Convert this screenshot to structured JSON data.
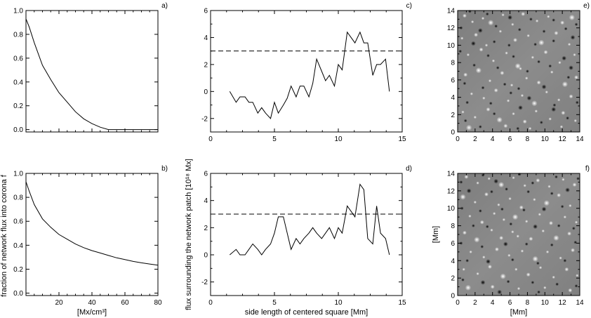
{
  "chart_data": [
    {
      "id": "a",
      "panel_label": "a)",
      "type": "line",
      "xlim": [
        0,
        80
      ],
      "ylim": [
        -0.02,
        1.0
      ],
      "xticks": [],
      "yticks": [
        "0.0",
        "0.2",
        "0.4",
        "0.6",
        "0.8",
        "1.0"
      ],
      "xlabel": "",
      "ylabel": "",
      "series": [
        {
          "x": [
            0,
            2,
            5,
            10,
            15,
            20,
            25,
            30,
            35,
            40,
            45,
            50,
            60,
            70,
            80
          ],
          "y": [
            0.93,
            0.86,
            0.73,
            0.54,
            0.42,
            0.31,
            0.23,
            0.15,
            0.09,
            0.05,
            0.02,
            0.0,
            0.0,
            0.0,
            0.0
          ]
        }
      ]
    },
    {
      "id": "b",
      "panel_label": "b)",
      "type": "line",
      "xlim": [
        0,
        80
      ],
      "ylim": [
        -0.02,
        1.0
      ],
      "xticks": [
        "20",
        "40",
        "60",
        "80"
      ],
      "yticks": [
        "0.0",
        "0.2",
        "0.4",
        "0.6",
        "0.8",
        "1.0"
      ],
      "xlabel": "[Mx/cm³]",
      "ylabel": "fraction of network flux into corona  f",
      "series": [
        {
          "x": [
            0,
            2,
            5,
            10,
            15,
            20,
            25,
            30,
            35,
            40,
            45,
            50,
            55,
            60,
            65,
            70,
            75,
            80
          ],
          "y": [
            0.93,
            0.85,
            0.74,
            0.62,
            0.55,
            0.49,
            0.45,
            0.41,
            0.38,
            0.355,
            0.335,
            0.315,
            0.295,
            0.28,
            0.265,
            0.253,
            0.243,
            0.233
          ]
        }
      ]
    },
    {
      "id": "c",
      "panel_label": "c)",
      "type": "line",
      "xlim": [
        0,
        15
      ],
      "ylim": [
        -3,
        6
      ],
      "xticks": [
        "0",
        "5",
        "10",
        "15"
      ],
      "yticks": [
        "-2",
        "0",
        "2",
        "4",
        "6"
      ],
      "xlabel": "",
      "ylabel": "",
      "threshold": 3,
      "series": [
        {
          "x": [
            1.5,
            2.0,
            2.3,
            2.7,
            3.0,
            3.3,
            3.7,
            4.0,
            4.3,
            4.7,
            5.0,
            5.3,
            5.7,
            6.0,
            6.3,
            6.7,
            7.0,
            7.3,
            7.7,
            8.0,
            8.3,
            8.7,
            9.0,
            9.3,
            9.7,
            10.0,
            10.3,
            10.7,
            11.0,
            11.3,
            11.7,
            12.0,
            12.3,
            12.7,
            13.0,
            13.3,
            13.7,
            14.0
          ],
          "y": [
            0,
            -0.8,
            -0.4,
            -0.4,
            -0.8,
            -0.8,
            -1.6,
            -1.2,
            -1.6,
            -2.0,
            -0.8,
            -1.6,
            -1.0,
            -0.5,
            0.4,
            -0.4,
            0.4,
            0.4,
            -0.4,
            0.6,
            2.4,
            1.5,
            0.8,
            1.2,
            0.4,
            2.0,
            1.6,
            4.4,
            4.0,
            3.6,
            4.4,
            3.6,
            3.6,
            1.2,
            2.0,
            2.0,
            2.4,
            0.0
          ]
        }
      ]
    },
    {
      "id": "d",
      "panel_label": "d)",
      "type": "line",
      "xlim": [
        0,
        15
      ],
      "ylim": [
        -3,
        6
      ],
      "xticks": [
        "0",
        "5",
        "10",
        "15"
      ],
      "yticks": [
        "-2",
        "0",
        "2",
        "4",
        "6"
      ],
      "xlabel": "side length of centered square [Mm]",
      "ylabel": "flux surrounding the network patch [10¹⁸ Mx]",
      "threshold": 3,
      "series": [
        {
          "x": [
            1.5,
            2.0,
            2.3,
            2.7,
            3.0,
            3.3,
            3.7,
            4.0,
            4.3,
            4.7,
            5.0,
            5.3,
            5.7,
            6.0,
            6.3,
            6.7,
            7.0,
            7.3,
            7.7,
            8.0,
            8.3,
            8.7,
            9.0,
            9.3,
            9.7,
            10.0,
            10.3,
            10.7,
            11.0,
            11.3,
            11.7,
            12.0,
            12.3,
            12.7,
            13.0,
            13.3,
            13.7,
            14.0
          ],
          "y": [
            0,
            0.4,
            0.0,
            0.0,
            0.4,
            0.8,
            0.4,
            0.0,
            0.4,
            0.8,
            1.6,
            2.8,
            2.8,
            1.6,
            0.4,
            1.2,
            0.8,
            1.2,
            1.6,
            2.0,
            1.6,
            1.2,
            1.6,
            2.0,
            1.2,
            2.0,
            1.6,
            3.6,
            3.2,
            2.8,
            5.2,
            4.8,
            1.2,
            0.8,
            3.6,
            1.6,
            1.2,
            0.0
          ]
        }
      ]
    },
    {
      "id": "e",
      "panel_label": "e)",
      "type": "heatmap",
      "xlim": [
        0,
        14
      ],
      "ylim": [
        0,
        14
      ],
      "xticks": [
        "0",
        "2",
        "4",
        "6",
        "8",
        "10",
        "12",
        "14"
      ],
      "yticks": [
        "0",
        "2",
        "4",
        "6",
        "8",
        "10",
        "12",
        "14"
      ],
      "xlabel": "",
      "ylabel": "",
      "background": "#848484",
      "bright_dots": [
        [
          0.8,
          13.4
        ],
        [
          1.7,
          12.7
        ],
        [
          2.9,
          13.1
        ],
        [
          3.8,
          12.6
        ],
        [
          5.2,
          13.5
        ],
        [
          6.3,
          12.4
        ],
        [
          7.5,
          13.6
        ],
        [
          9.1,
          12.8
        ],
        [
          10.4,
          13.3
        ],
        [
          12.0,
          12.6
        ],
        [
          13.1,
          13.2
        ],
        [
          0.5,
          10.8
        ],
        [
          2.1,
          11.2
        ],
        [
          3.3,
          10.0
        ],
        [
          4.9,
          11.6
        ],
        [
          6.6,
          10.6
        ],
        [
          8.1,
          11.1
        ],
        [
          9.6,
          10.3
        ],
        [
          11.3,
          11.4
        ],
        [
          12.8,
          10.1
        ],
        [
          1.2,
          8.9
        ],
        [
          2.7,
          9.5
        ],
        [
          4.1,
          8.2
        ],
        [
          5.6,
          9.1
        ],
        [
          6.9,
          7.6
        ],
        [
          7.2,
          7.3
        ],
        [
          8.6,
          8.6
        ],
        [
          10.1,
          9.2
        ],
        [
          11.7,
          8.0
        ],
        [
          13.4,
          8.9
        ],
        [
          0.9,
          6.6
        ],
        [
          2.4,
          7.1
        ],
        [
          3.7,
          5.9
        ],
        [
          5.1,
          6.8
        ],
        [
          6.2,
          5.4
        ],
        [
          7.9,
          6.2
        ],
        [
          9.3,
          5.7
        ],
        [
          10.8,
          6.9
        ],
        [
          12.3,
          5.5
        ],
        [
          13.6,
          6.3
        ],
        [
          1.6,
          4.4
        ],
        [
          3.0,
          3.9
        ],
        [
          4.4,
          4.8
        ],
        [
          5.8,
          3.6
        ],
        [
          7.4,
          4.2
        ],
        [
          8.8,
          3.3
        ],
        [
          10.2,
          4.6
        ],
        [
          11.6,
          3.7
        ],
        [
          13.0,
          4.1
        ],
        [
          0.6,
          2.3
        ],
        [
          2.0,
          1.7
        ],
        [
          3.5,
          2.6
        ],
        [
          4.8,
          1.4
        ],
        [
          6.4,
          2.1
        ],
        [
          7.7,
          1.2
        ],
        [
          9.0,
          2.4
        ],
        [
          10.6,
          1.5
        ],
        [
          12.1,
          2.2
        ],
        [
          13.5,
          1.3
        ],
        [
          1.3,
          0.5
        ],
        [
          5.5,
          0.7
        ],
        [
          8.3,
          0.4
        ],
        [
          11.9,
          0.6
        ]
      ],
      "dark_dots": [
        [
          1.4,
          13.9
        ],
        [
          3.4,
          13.6
        ],
        [
          6.0,
          13.2
        ],
        [
          8.4,
          13.0
        ],
        [
          11.0,
          12.9
        ],
        [
          13.6,
          12.4
        ],
        [
          0.4,
          12.0
        ],
        [
          2.6,
          11.7
        ],
        [
          4.4,
          12.2
        ],
        [
          7.1,
          11.8
        ],
        [
          9.9,
          11.6
        ],
        [
          12.4,
          11.9
        ],
        [
          1.8,
          10.2
        ],
        [
          4.2,
          10.4
        ],
        [
          5.9,
          10.0
        ],
        [
          8.9,
          10.1
        ],
        [
          11.0,
          10.5
        ],
        [
          13.2,
          10.9
        ],
        [
          0.3,
          9.3
        ],
        [
          3.5,
          8.8
        ],
        [
          6.4,
          8.7
        ],
        [
          9.3,
          8.1
        ],
        [
          12.2,
          8.5
        ],
        [
          1.9,
          7.7
        ],
        [
          4.6,
          7.4
        ],
        [
          8.0,
          7.0
        ],
        [
          10.6,
          7.6
        ],
        [
          13.0,
          7.4
        ],
        [
          0.8,
          5.6
        ],
        [
          2.9,
          5.1
        ],
        [
          5.4,
          5.5
        ],
        [
          7.0,
          5.0
        ],
        [
          9.9,
          5.2
        ],
        [
          12.7,
          6.3
        ],
        [
          1.1,
          3.4
        ],
        [
          3.8,
          3.3
        ],
        [
          6.1,
          4.5
        ],
        [
          8.2,
          3.9
        ],
        [
          11.1,
          3.1
        ],
        [
          13.7,
          3.4
        ],
        [
          2.6,
          0.6
        ],
        [
          4.2,
          2.1
        ],
        [
          7.2,
          2.8
        ],
        [
          9.6,
          1.1
        ],
        [
          12.6,
          1.6
        ],
        [
          0.9,
          1.3
        ],
        [
          6.9,
          0.4
        ],
        [
          11.0,
          2.6
        ]
      ]
    },
    {
      "id": "f",
      "panel_label": "f)",
      "type": "heatmap",
      "xlim": [
        0,
        14
      ],
      "ylim": [
        0,
        14
      ],
      "xticks": [
        "0",
        "2",
        "4",
        "6",
        "8",
        "10",
        "12",
        "14"
      ],
      "yticks": [
        "0",
        "2",
        "4",
        "6",
        "8",
        "10",
        "12",
        "14"
      ],
      "xlabel": "[Mm]",
      "ylabel": "[Mm]",
      "background": "#8a8a8a",
      "bright_dots": [
        [
          1.0,
          13.6
        ],
        [
          2.3,
          12.9
        ],
        [
          3.6,
          13.4
        ],
        [
          5.0,
          12.7
        ],
        [
          6.4,
          13.5
        ],
        [
          7.7,
          12.6
        ],
        [
          9.2,
          13.2
        ],
        [
          10.5,
          12.5
        ],
        [
          12.1,
          13.3
        ],
        [
          13.4,
          12.7
        ],
        [
          0.6,
          11.3
        ],
        [
          2.0,
          10.7
        ],
        [
          3.3,
          11.6
        ],
        [
          4.7,
          10.4
        ],
        [
          6.0,
          11.1
        ],
        [
          7.3,
          10.1
        ],
        [
          8.8,
          11.0
        ],
        [
          10.2,
          10.6
        ],
        [
          11.6,
          11.5
        ],
        [
          12.9,
          10.3
        ],
        [
          1.4,
          9.1
        ],
        [
          2.8,
          8.4
        ],
        [
          4.2,
          9.4
        ],
        [
          5.3,
          8.7
        ],
        [
          6.6,
          9.0
        ],
        [
          7.9,
          8.5
        ],
        [
          9.4,
          9.3
        ],
        [
          10.7,
          8.3
        ],
        [
          12.3,
          9.0
        ],
        [
          13.6,
          8.4
        ],
        [
          0.8,
          7.2
        ],
        [
          2.2,
          6.4
        ],
        [
          3.9,
          7.5
        ],
        [
          5.0,
          6.6
        ],
        [
          6.3,
          7.3
        ],
        [
          6.9,
          6.8
        ],
        [
          8.4,
          6.5
        ],
        [
          9.8,
          7.4
        ],
        [
          11.3,
          6.6
        ],
        [
          12.8,
          7.1
        ],
        [
          1.5,
          5.0
        ],
        [
          3.0,
          4.4
        ],
        [
          4.5,
          5.3
        ],
        [
          5.9,
          4.6
        ],
        [
          7.4,
          5.1
        ],
        [
          8.9,
          4.2
        ],
        [
          10.3,
          5.0
        ],
        [
          11.8,
          4.3
        ],
        [
          13.2,
          5.2
        ],
        [
          0.7,
          3.0
        ],
        [
          2.3,
          2.5
        ],
        [
          3.7,
          3.3
        ],
        [
          5.2,
          2.2
        ],
        [
          6.7,
          3.0
        ],
        [
          8.1,
          2.4
        ],
        [
          9.5,
          3.2
        ],
        [
          11.0,
          2.1
        ],
        [
          12.5,
          3.0
        ],
        [
          13.7,
          2.3
        ],
        [
          1.2,
          0.9
        ],
        [
          4.0,
          1.0
        ],
        [
          7.0,
          0.8
        ],
        [
          10.0,
          0.9
        ],
        [
          12.9,
          0.6
        ]
      ],
      "dark_dots": [
        [
          0.4,
          13.0
        ],
        [
          2.9,
          13.8
        ],
        [
          4.4,
          13.1
        ],
        [
          7.1,
          13.9
        ],
        [
          8.6,
          12.9
        ],
        [
          11.3,
          13.6
        ],
        [
          13.8,
          13.4
        ],
        [
          1.3,
          12.0
        ],
        [
          3.9,
          11.9
        ],
        [
          5.6,
          12.2
        ],
        [
          8.1,
          11.9
        ],
        [
          10.8,
          11.7
        ],
        [
          12.6,
          12.1
        ],
        [
          0.5,
          10.0
        ],
        [
          2.6,
          9.7
        ],
        [
          5.1,
          9.9
        ],
        [
          7.6,
          9.8
        ],
        [
          9.9,
          9.9
        ],
        [
          12.0,
          10.2
        ],
        [
          1.8,
          8.0
        ],
        [
          3.4,
          7.9
        ],
        [
          6.1,
          8.2
        ],
        [
          8.9,
          7.9
        ],
        [
          11.6,
          8.0
        ],
        [
          13.3,
          7.7
        ],
        [
          0.4,
          6.0
        ],
        [
          2.8,
          5.6
        ],
        [
          5.5,
          5.9
        ],
        [
          7.9,
          5.9
        ],
        [
          10.8,
          5.8
        ],
        [
          13.5,
          6.1
        ],
        [
          1.1,
          4.0
        ],
        [
          3.5,
          3.9
        ],
        [
          6.3,
          4.1
        ],
        [
          9.2,
          3.7
        ],
        [
          12.3,
          4.0
        ],
        [
          0.6,
          1.8
        ],
        [
          2.9,
          1.5
        ],
        [
          5.8,
          1.6
        ],
        [
          8.6,
          1.5
        ],
        [
          11.4,
          1.3
        ],
        [
          13.6,
          1.1
        ],
        [
          4.8,
          0.4
        ],
        [
          9.3,
          0.4
        ]
      ]
    }
  ]
}
